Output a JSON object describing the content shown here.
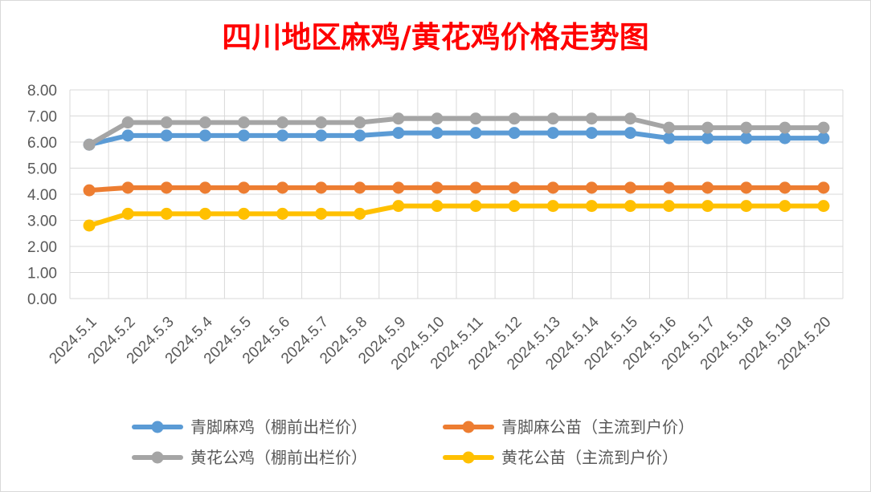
{
  "chart_data": {
    "type": "line",
    "title": "四川地区麻鸡/黄花鸡价格走势图",
    "categories": [
      "2024.5.1",
      "2024.5.2",
      "2024.5.3",
      "2024.5.4",
      "2024.5.5",
      "2024.5.6",
      "2024.5.7",
      "2024.5.8",
      "2024.5.9",
      "2024.5.10",
      "2024.5.11",
      "2024.5.12",
      "2024.5.13",
      "2024.5.14",
      "2024.5.15",
      "2024.5.16",
      "2024.5.17",
      "2024.5.18",
      "2024.5.19",
      "2024.5.20"
    ],
    "ylim": [
      0,
      8
    ],
    "yticks": [
      "0.00",
      "1.00",
      "2.00",
      "3.00",
      "4.00",
      "5.00",
      "6.00",
      "7.00",
      "8.00"
    ],
    "grid": true,
    "legend_position": "bottom",
    "series": [
      {
        "name": "青脚麻鸡（棚前出栏价）",
        "color": "#5b9bd5",
        "values": [
          5.9,
          6.25,
          6.25,
          6.25,
          6.25,
          6.25,
          6.25,
          6.25,
          6.35,
          6.35,
          6.35,
          6.35,
          6.35,
          6.35,
          6.35,
          6.15,
          6.15,
          6.15,
          6.15,
          6.15
        ]
      },
      {
        "name": "青脚麻公苗（主流到户价）",
        "color": "#ed7d31",
        "values": [
          4.15,
          4.25,
          4.25,
          4.25,
          4.25,
          4.25,
          4.25,
          4.25,
          4.25,
          4.25,
          4.25,
          4.25,
          4.25,
          4.25,
          4.25,
          4.25,
          4.25,
          4.25,
          4.25,
          4.25
        ]
      },
      {
        "name": "黄花公鸡（棚前出栏价）",
        "color": "#a5a5a5",
        "values": [
          5.9,
          6.75,
          6.75,
          6.75,
          6.75,
          6.75,
          6.75,
          6.75,
          6.9,
          6.9,
          6.9,
          6.9,
          6.9,
          6.9,
          6.9,
          6.55,
          6.55,
          6.55,
          6.55,
          6.55
        ]
      },
      {
        "name": "黄花公苗（主流到户价）",
        "color": "#ffc000",
        "values": [
          2.8,
          3.25,
          3.25,
          3.25,
          3.25,
          3.25,
          3.25,
          3.25,
          3.55,
          3.55,
          3.55,
          3.55,
          3.55,
          3.55,
          3.55,
          3.55,
          3.55,
          3.55,
          3.55,
          3.55
        ]
      }
    ]
  }
}
